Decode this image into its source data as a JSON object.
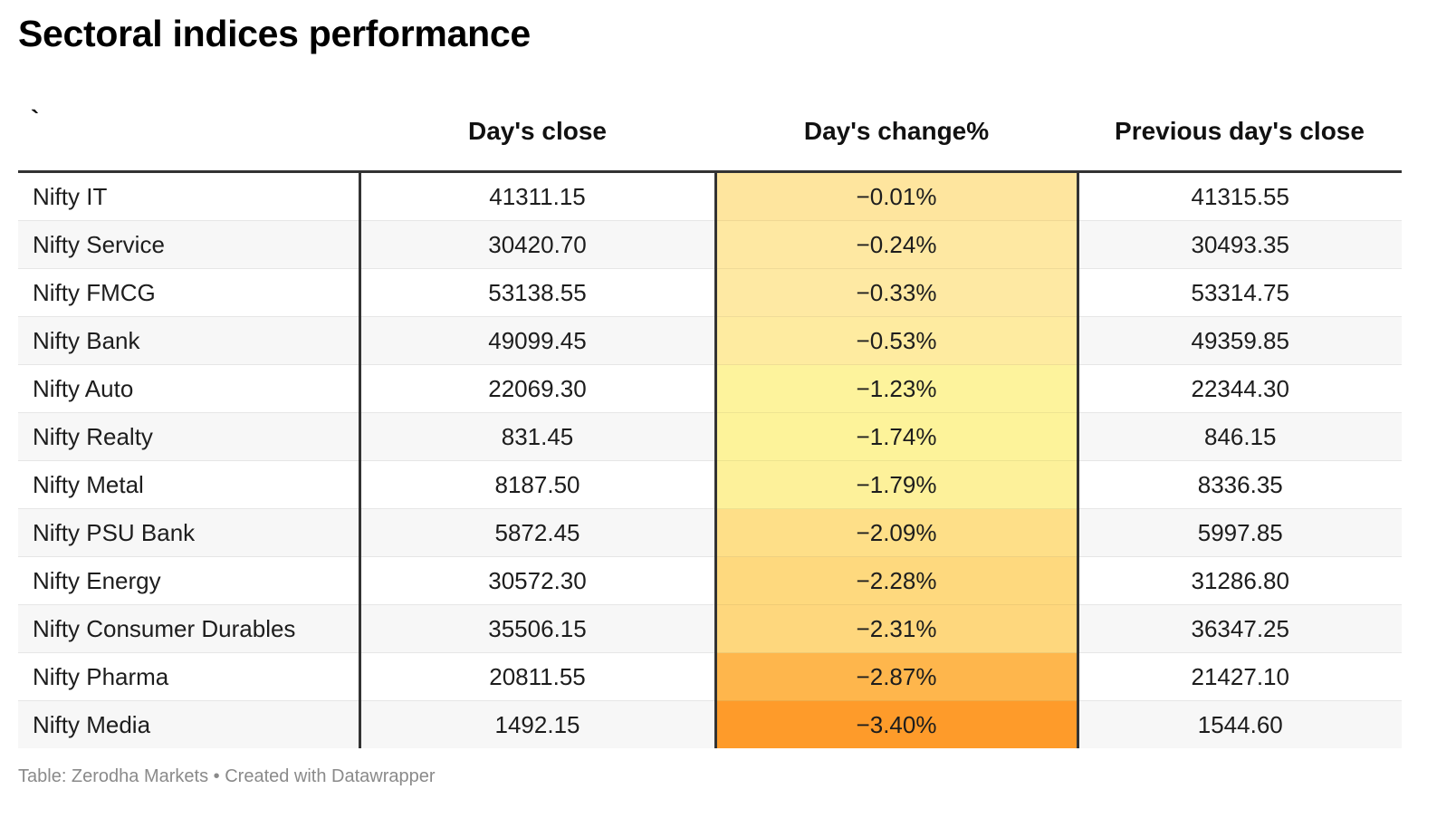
{
  "title": "Sectoral indices performance",
  "chart_data": {
    "type": "table",
    "columns": [
      "`",
      "Day's close",
      "Day's change%",
      "Previous day's close"
    ],
    "rows": [
      {
        "sector": "Nifty IT",
        "close": "41311.15",
        "change": "−0.01%",
        "change_value": -0.01,
        "prev_close": "41315.55",
        "color": "#fee59e"
      },
      {
        "sector": "Nifty Service",
        "close": "30420.70",
        "change": "−0.24%",
        "change_value": -0.24,
        "prev_close": "30493.35",
        "color": "#fee8a2"
      },
      {
        "sector": "Nifty FMCG",
        "close": "53138.55",
        "change": "−0.33%",
        "change_value": -0.33,
        "prev_close": "53314.75",
        "color": "#fee9a3"
      },
      {
        "sector": "Nifty Bank",
        "close": "49099.45",
        "change": "−0.53%",
        "change_value": -0.53,
        "prev_close": "49359.85",
        "color": "#feeba0"
      },
      {
        "sector": "Nifty Auto",
        "close": "22069.30",
        "change": "−1.23%",
        "change_value": -1.23,
        "prev_close": "22344.30",
        "color": "#fdf39c"
      },
      {
        "sector": "Nifty Realty",
        "close": "831.45",
        "change": "−1.74%",
        "change_value": -1.74,
        "prev_close": "846.15",
        "color": "#fdf39a"
      },
      {
        "sector": "Nifty Metal",
        "close": "8187.50",
        "change": "−1.79%",
        "change_value": -1.79,
        "prev_close": "8336.35",
        "color": "#fdf19a"
      },
      {
        "sector": "Nifty PSU Bank",
        "close": "5872.45",
        "change": "−2.09%",
        "change_value": -2.09,
        "prev_close": "5997.85",
        "color": "#fedf88"
      },
      {
        "sector": "Nifty Energy",
        "close": "30572.30",
        "change": "−2.28%",
        "change_value": -2.28,
        "prev_close": "31286.80",
        "color": "#fed97e"
      },
      {
        "sector": "Nifty Consumer Durables",
        "close": "35506.15",
        "change": "−2.31%",
        "change_value": -2.31,
        "prev_close": "36347.25",
        "color": "#fed77d"
      },
      {
        "sector": "Nifty Pharma",
        "close": "20811.55",
        "change": "−2.87%",
        "change_value": -2.87,
        "prev_close": "21427.10",
        "color": "#feb64c"
      },
      {
        "sector": "Nifty Media",
        "close": "1492.15",
        "change": "−3.40%",
        "change_value": -3.4,
        "prev_close": "1544.60",
        "color": "#fe9b2a"
      }
    ]
  },
  "footer": "Table: Zerodha Markets • Created with Datawrapper"
}
